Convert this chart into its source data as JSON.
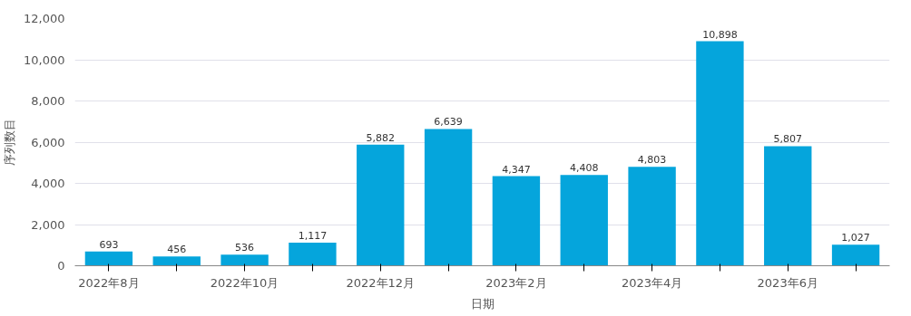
{
  "chart_data": {
    "type": "bar",
    "xlabel": "日期",
    "ylabel": "序列数目",
    "categories": [
      "2022年8月",
      null,
      "2022年10月",
      null,
      "2022年12月",
      null,
      "2023年2月",
      null,
      "2023年4月",
      null,
      "2023年6月",
      null
    ],
    "values": [
      693,
      456,
      536,
      1117,
      5882,
      6639,
      4347,
      4408,
      4803,
      10898,
      5807,
      1027
    ],
    "color": "#05a5dc",
    "ylim": [
      0,
      12000
    ],
    "yticks": [
      {
        "value": 0,
        "label": "0"
      },
      {
        "value": 2000,
        "label": "2,000"
      },
      {
        "value": 4000,
        "label": "4,000"
      },
      {
        "value": 6000,
        "label": "6,000"
      },
      {
        "value": 8000,
        "label": "8,000"
      },
      {
        "value": 10000,
        "label": "10,000"
      },
      {
        "value": 12000,
        "label": "12,000"
      }
    ],
    "value_labels": [
      "693",
      "456",
      "536",
      "1,117",
      "5,882",
      "6,639",
      "4,347",
      "4,408",
      "4,803",
      "10,898",
      "5,807",
      "1,027"
    ],
    "grid": "y"
  }
}
